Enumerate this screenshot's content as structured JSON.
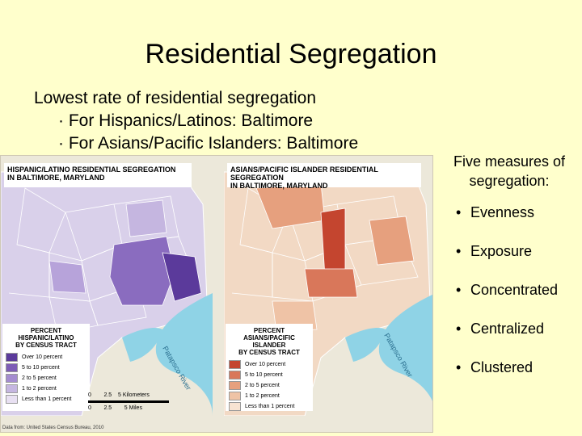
{
  "slide": {
    "title": "Residential Segregation",
    "main_bullet": "Lowest rate of residential segregation",
    "sub_bullets": [
      "· For Hispanics/Latinos: Baltimore",
      "· For Asians/Pacific Islanders: Baltimore"
    ],
    "side_heading_line1": "Five measures of",
    "side_heading_line2": "segregation:",
    "measures": [
      "Evenness",
      "Exposure",
      "Concentrated",
      "Centralized",
      "Clustered"
    ],
    "bullet_symbol": "•"
  },
  "figure": {
    "left_map": {
      "title_line1": "HISPANIC/LATINO RESIDENTIAL SEGREGATION",
      "title_line2": "IN BALTIMORE, MARYLAND",
      "legend_title_line1": "PERCENT",
      "legend_title_line2": "HISPANIC/LATINO",
      "legend_title_line3": "BY CENSUS TRACT",
      "legend": [
        {
          "label": "Over 10 percent",
          "color": "#5b3a9b"
        },
        {
          "label": "5 to 10 percent",
          "color": "#7d5cb6"
        },
        {
          "label": "2 to 5 percent",
          "color": "#a48ccf"
        },
        {
          "label": "1 to 2 percent",
          "color": "#c5b6e0"
        },
        {
          "label": "Less than 1 percent",
          "color": "#e8e0f2"
        }
      ],
      "river": "Patapsco River"
    },
    "right_map": {
      "title_line1": "ASIANS/PACIFIC ISLANDER RESIDENTIAL SEGREGATION",
      "title_line2": "IN BALTIMORE, MARYLAND",
      "legend_title_line1": "PERCENT",
      "legend_title_line2": "ASIANS/PACIFIC ISLANDER",
      "legend_title_line3": "BY CENSUS TRACT",
      "legend": [
        {
          "label": "Over 10 percent",
          "color": "#c4452f"
        },
        {
          "label": "5 to 10 percent",
          "color": "#d9775a"
        },
        {
          "label": "2 to 5 percent",
          "color": "#e6a07e"
        },
        {
          "label": "1 to 2 percent",
          "color": "#efc3a6"
        },
        {
          "label": "Less than 1 percent",
          "color": "#f7e3d2"
        }
      ],
      "river": "Patapsco River"
    },
    "scale_km": [
      "0",
      "2.5",
      "5 Kilometers"
    ],
    "scale_mi": [
      "0",
      "2.5",
      "5 Miles"
    ],
    "credit": "Data from: United States Census Bureau, 2010"
  }
}
